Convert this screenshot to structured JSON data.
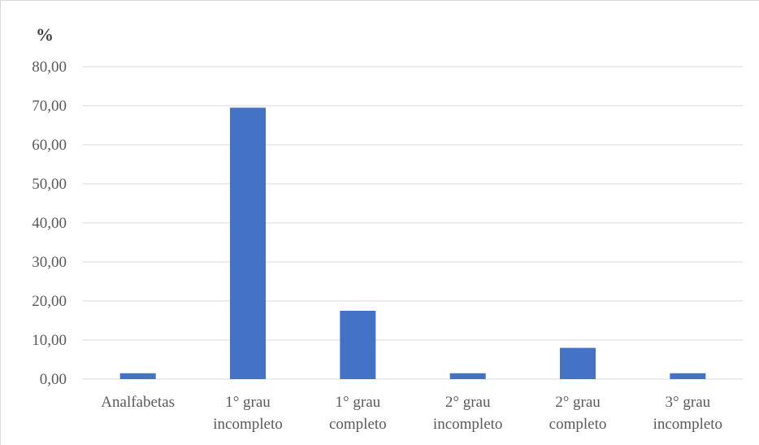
{
  "chart_data": {
    "type": "bar",
    "title": "",
    "ylabel": "%",
    "xlabel": "",
    "ylim": [
      0,
      80
    ],
    "yticks": [
      "0,00",
      "10,00",
      "20,00",
      "30,00",
      "40,00",
      "50,00",
      "60,00",
      "70,00",
      "80,00"
    ],
    "ytick_values": [
      0,
      10,
      20,
      30,
      40,
      50,
      60,
      70,
      80
    ],
    "categories": [
      [
        "Analfabetas"
      ],
      [
        "1° grau",
        "incompleto"
      ],
      [
        "1° grau",
        "completo"
      ],
      [
        "2° grau",
        "incompleto"
      ],
      [
        "2° grau",
        "completo"
      ],
      [
        "3° grau",
        "incompleto"
      ]
    ],
    "values": [
      1.5,
      69.5,
      17.5,
      1.5,
      8.0,
      1.5
    ],
    "grid": true,
    "legend": "none",
    "bar_color": "#4472c4"
  }
}
